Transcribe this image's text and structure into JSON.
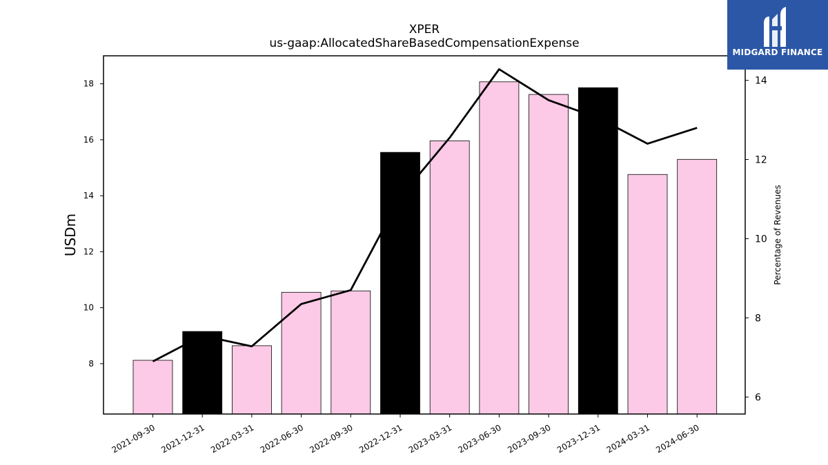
{
  "chart_data": {
    "type": "bar",
    "title": "XPER",
    "subtitle": "us-gaap:AllocatedShareBasedCompensationExpense",
    "ylabel": "USDm",
    "ylabel_right": "Percentage of Revenues",
    "categories": [
      "2021-09-30",
      "2021-12-31",
      "2022-03-31",
      "2022-06-30",
      "2022-09-30",
      "2022-12-31",
      "2023-03-31",
      "2023-06-30",
      "2023-09-30",
      "2023-12-31",
      "2024-03-31",
      "2024-06-30"
    ],
    "ylim": [
      6.2,
      19.0
    ],
    "ylim_right": [
      5.57,
      14.62
    ],
    "yticks": [
      8,
      10,
      12,
      14,
      16,
      18
    ],
    "yticks_right": [
      6,
      8,
      10,
      12,
      14
    ],
    "series": [
      {
        "type": "bar",
        "values": [
          8.12,
          9.15,
          8.64,
          10.55,
          10.6,
          15.55,
          15.96,
          18.07,
          17.62,
          17.86,
          14.76,
          15.3
        ],
        "colors": [
          "#fccae6",
          "#000000",
          "#fccae6",
          "#fccae6",
          "#fccae6",
          "#000000",
          "#fccae6",
          "#fccae6",
          "#fccae6",
          "#000000",
          "#fccae6",
          "#fccae6"
        ]
      },
      {
        "type": "line",
        "axis": "right",
        "values": [
          6.9,
          7.55,
          7.28,
          8.35,
          8.7,
          11.05,
          12.55,
          14.28,
          13.5,
          13.05,
          12.4,
          12.8
        ],
        "color": "#000000"
      }
    ],
    "grid": false
  },
  "logo": {
    "text": "MIDGARD FINANCE",
    "color": "#2b57a6"
  }
}
